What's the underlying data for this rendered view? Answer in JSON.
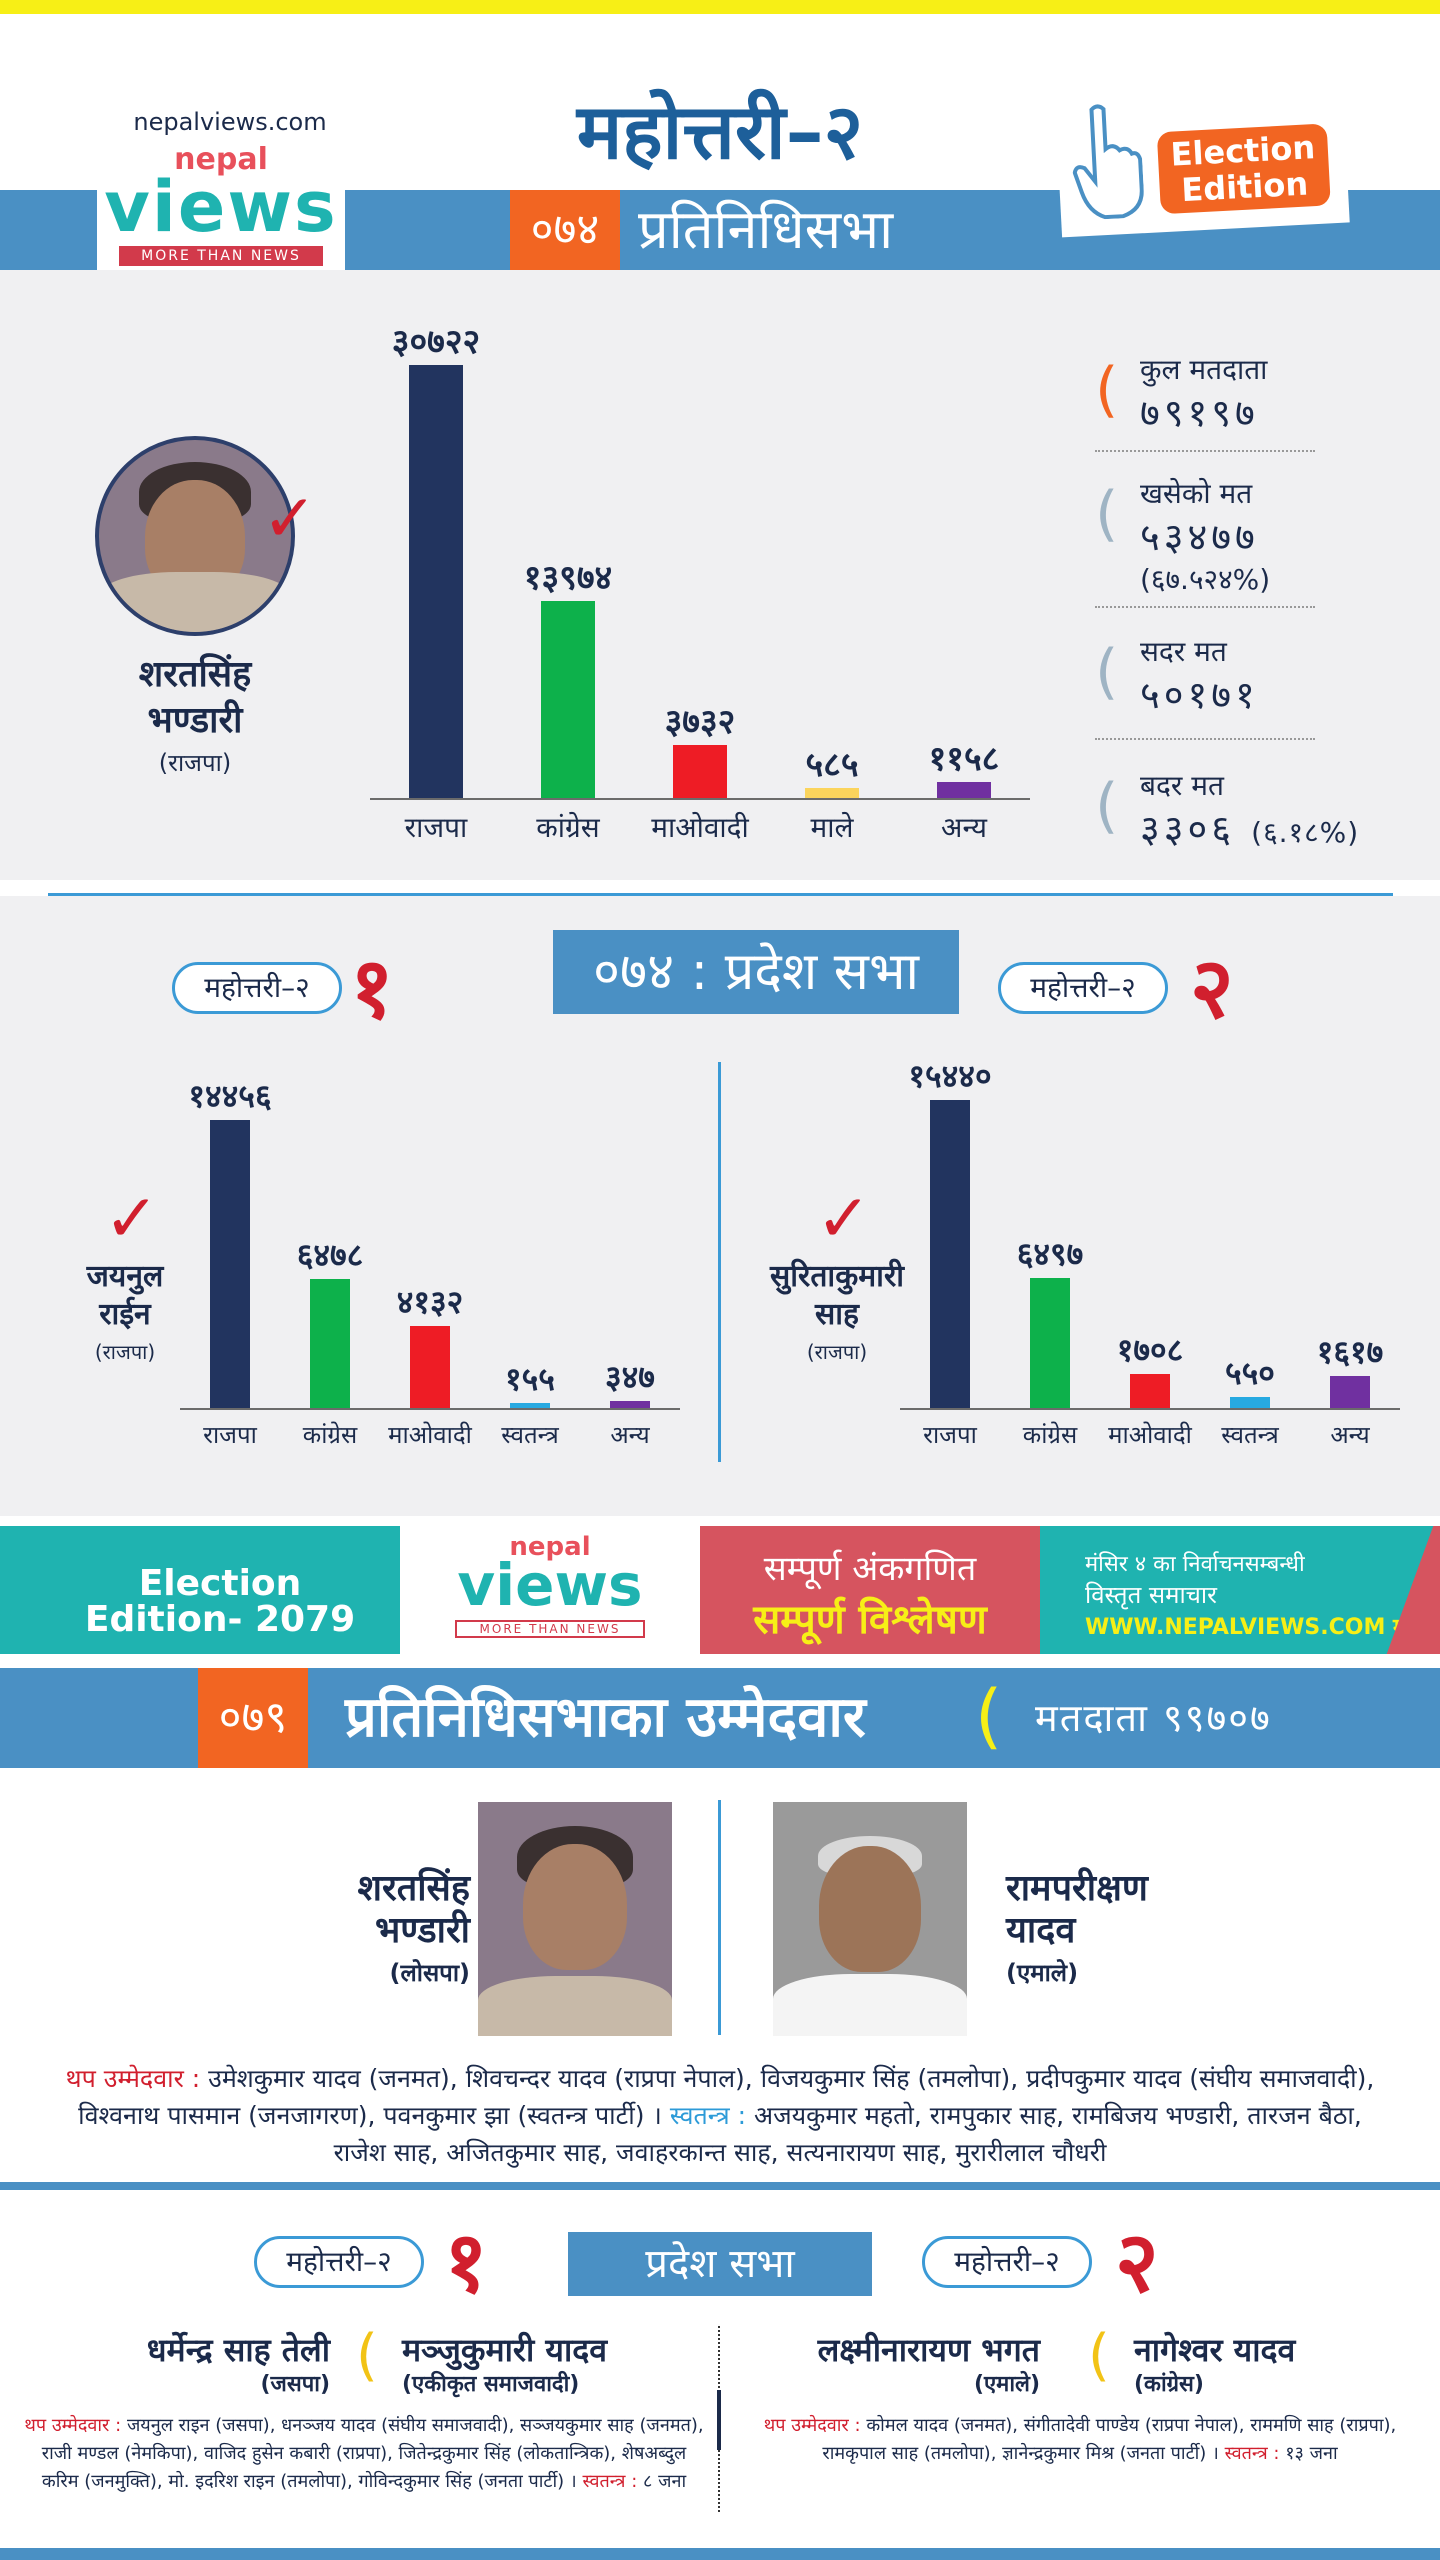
{
  "header": {
    "site_url": "nepalviews.com",
    "logo_top": "nepal",
    "logo_main": "views",
    "logo_tagline": "MORE THAN NEWS",
    "title": "महोत्तरी–२",
    "year_badge": "०७४",
    "house_label": "प्रतिनिधिसभा",
    "edition_badge": "Election Edition",
    "hand_icon": "hand-pointer-icon"
  },
  "hor_074": {
    "winner": {
      "name_line1": "शरतसिंह",
      "name_line2": "भण्डारी",
      "party": "(राजपा)"
    },
    "chart_data": {
      "type": "bar",
      "categories": [
        "राजपा",
        "कांग्रेस",
        "माओवादी",
        "माले",
        "अन्य"
      ],
      "values": [
        30722,
        13974,
        3732,
        585,
        1158
      ],
      "value_labels": [
        "३०७२२",
        "१३९७४",
        "३७३२",
        "५८५",
        "११५८"
      ],
      "colors": [
        "#22345f",
        "#0db14b",
        "#ee1c25",
        "#fbd45c",
        "#7030a0"
      ],
      "ylim": [
        0,
        30722
      ]
    },
    "stats": [
      {
        "label": "कुल मतदाता",
        "value": "७९१९७",
        "sub": "",
        "paren_color": "#f26522"
      },
      {
        "label": "खसेको मत",
        "value": "५३४७७",
        "sub": "(६७.५२४%)",
        "paren_color": "#9fb4c4"
      },
      {
        "label": "सदर मत",
        "value": "५०१७१",
        "sub": "",
        "paren_color": "#9fb4c4"
      },
      {
        "label": "बदर मत",
        "value": "३३०६",
        "sub": "(६.१८%)",
        "paren_color": "#9fb4c4"
      }
    ]
  },
  "prov_074": {
    "title": "०७४ : प्रदेश सभा",
    "left": {
      "constituency": "महोत्तरी–२",
      "number": "१",
      "winner": {
        "name_line1": "जयनुल",
        "name_line2": "राईन",
        "party": "(राजपा)"
      },
      "chart_data": {
        "type": "bar",
        "categories": [
          "राजपा",
          "कांग्रेस",
          "माओवादी",
          "स्वतन्त्र",
          "अन्य"
        ],
        "values": [
          14456,
          6478,
          4132,
          155,
          347
        ],
        "value_labels": [
          "१४४५६",
          "६४७८",
          "४१३२",
          "१५५",
          "३४७"
        ],
        "colors": [
          "#22345f",
          "#0db14b",
          "#ee1c25",
          "#27a9e1",
          "#7030a0"
        ],
        "ylim": [
          0,
          15440
        ]
      }
    },
    "right": {
      "constituency": "महोत्तरी–२",
      "number": "२",
      "winner": {
        "name_line1": "सुरिताकुमारी",
        "name_line2": "साह",
        "party": "(राजपा)"
      },
      "chart_data": {
        "type": "bar",
        "categories": [
          "राजपा",
          "कांग्रेस",
          "माओवादी",
          "स्वतन्त्र",
          "अन्य"
        ],
        "values": [
          15440,
          6497,
          1708,
          550,
          1617
        ],
        "value_labels": [
          "१५४४०",
          "६४९७",
          "१७०८",
          "५५०",
          "१६१७"
        ],
        "colors": [
          "#22345f",
          "#0db14b",
          "#ee1c25",
          "#27a9e1",
          "#7030a0"
        ],
        "ylim": [
          0,
          15440
        ]
      }
    }
  },
  "promo": {
    "edition": "Election Edition- 2079",
    "logo_top": "nepal",
    "logo_main": "views",
    "logo_tagline": "MORE THAN NEWS",
    "line1": "सम्पूर्ण अंकगणित",
    "line2": "सम्पूर्ण विश्लेषण",
    "right1": "मंसिर ४ का निर्वाचनसम्बन्धी",
    "right2": "विस्तृत समाचार",
    "right3": "WWW.NEPALVIEWS.COM मा"
  },
  "cand_079": {
    "year_badge": "०७९",
    "title": "प्रतिनिधिसभाका उम्मेदवार",
    "voters_label": "मतदाता ९९७०७",
    "left": {
      "name_line1": "शरतसिंह",
      "name_line2": "भण्डारी",
      "party": "(लोसपा)"
    },
    "right": {
      "name_line1": "रामपरीक्षण",
      "name_line2": "यादव",
      "party": "(एमाले)"
    },
    "extra_label": "थप उम्मेदवार :",
    "extra_text": "उमेशकुमार यादव (जनमत), शिवचन्दर यादव (राप्रपा नेपाल), विजयकुमार सिंह (तमलोपा), प्रदीपकुमार यादव (संघीय समाजवादी), विश्वनाथ पासमान (जनजागरण), पवनकुमार झा (स्वतन्त्र पार्टी) ।",
    "independent_label": "स्वतन्त्र :",
    "independent_text": "अजयकुमार महतो, रामपुकार साह, रामबिजय भण्डारी, तारजन बैठा, राजेश साह, अजितकुमार साह, जवाहरकान्त साह, सत्यनारायण साह, मुरारीलाल चौधरी"
  },
  "prov_079": {
    "title": "प्रदेश सभा",
    "left": {
      "constituency": "महोत्तरी–२",
      "number": "१",
      "cand1": {
        "name": "धर्मेन्द्र साह तेली",
        "party": "(जसपा)"
      },
      "cand2": {
        "name": "मञ्जुकुमारी यादव",
        "party": "(एकीकृत समाजवादी)"
      },
      "extra_label": "थप उम्मेदवार :",
      "extra_text": "जयनुल राइन (जसपा), धनञ्जय यादव (संघीय समाजवादी), सञ्जयकुमार साह (जनमत), राजी मण्डल (नेमकिपा), वाजिद हुसेन कबारी (राप्रपा), जितेन्द्रकुमार सिंह (लोकतान्त्रिक), शेषअब्दुल करिम (जनमुक्ति), मो. इदरिश राइन (तमलोपा), गोविन्दकुमार सिंह (जनता पार्टी) ।",
      "independent_label": "स्वतन्त्र :",
      "independent_text": "८ जना"
    },
    "right": {
      "constituency": "महोत्तरी–२",
      "number": "२",
      "cand1": {
        "name": "लक्ष्मीनारायण भगत",
        "party": "(एमाले)"
      },
      "cand2": {
        "name": "नागेश्वर यादव",
        "party": "(कांग्रेस)"
      },
      "extra_label": "थप उम्मेदवार :",
      "extra_text": "कोमल यादव (जनमत), संगीतादेवी पाण्डेय (राप्रपा नेपाल), राममणि साह (राप्रपा), रामकृपाल साह (तमलोपा), ज्ञानेन्द्रकुमार मिश्र (जनता पार्टी) ।",
      "independent_label": "स्वतन्त्र :",
      "independent_text": "१३ जना"
    }
  }
}
